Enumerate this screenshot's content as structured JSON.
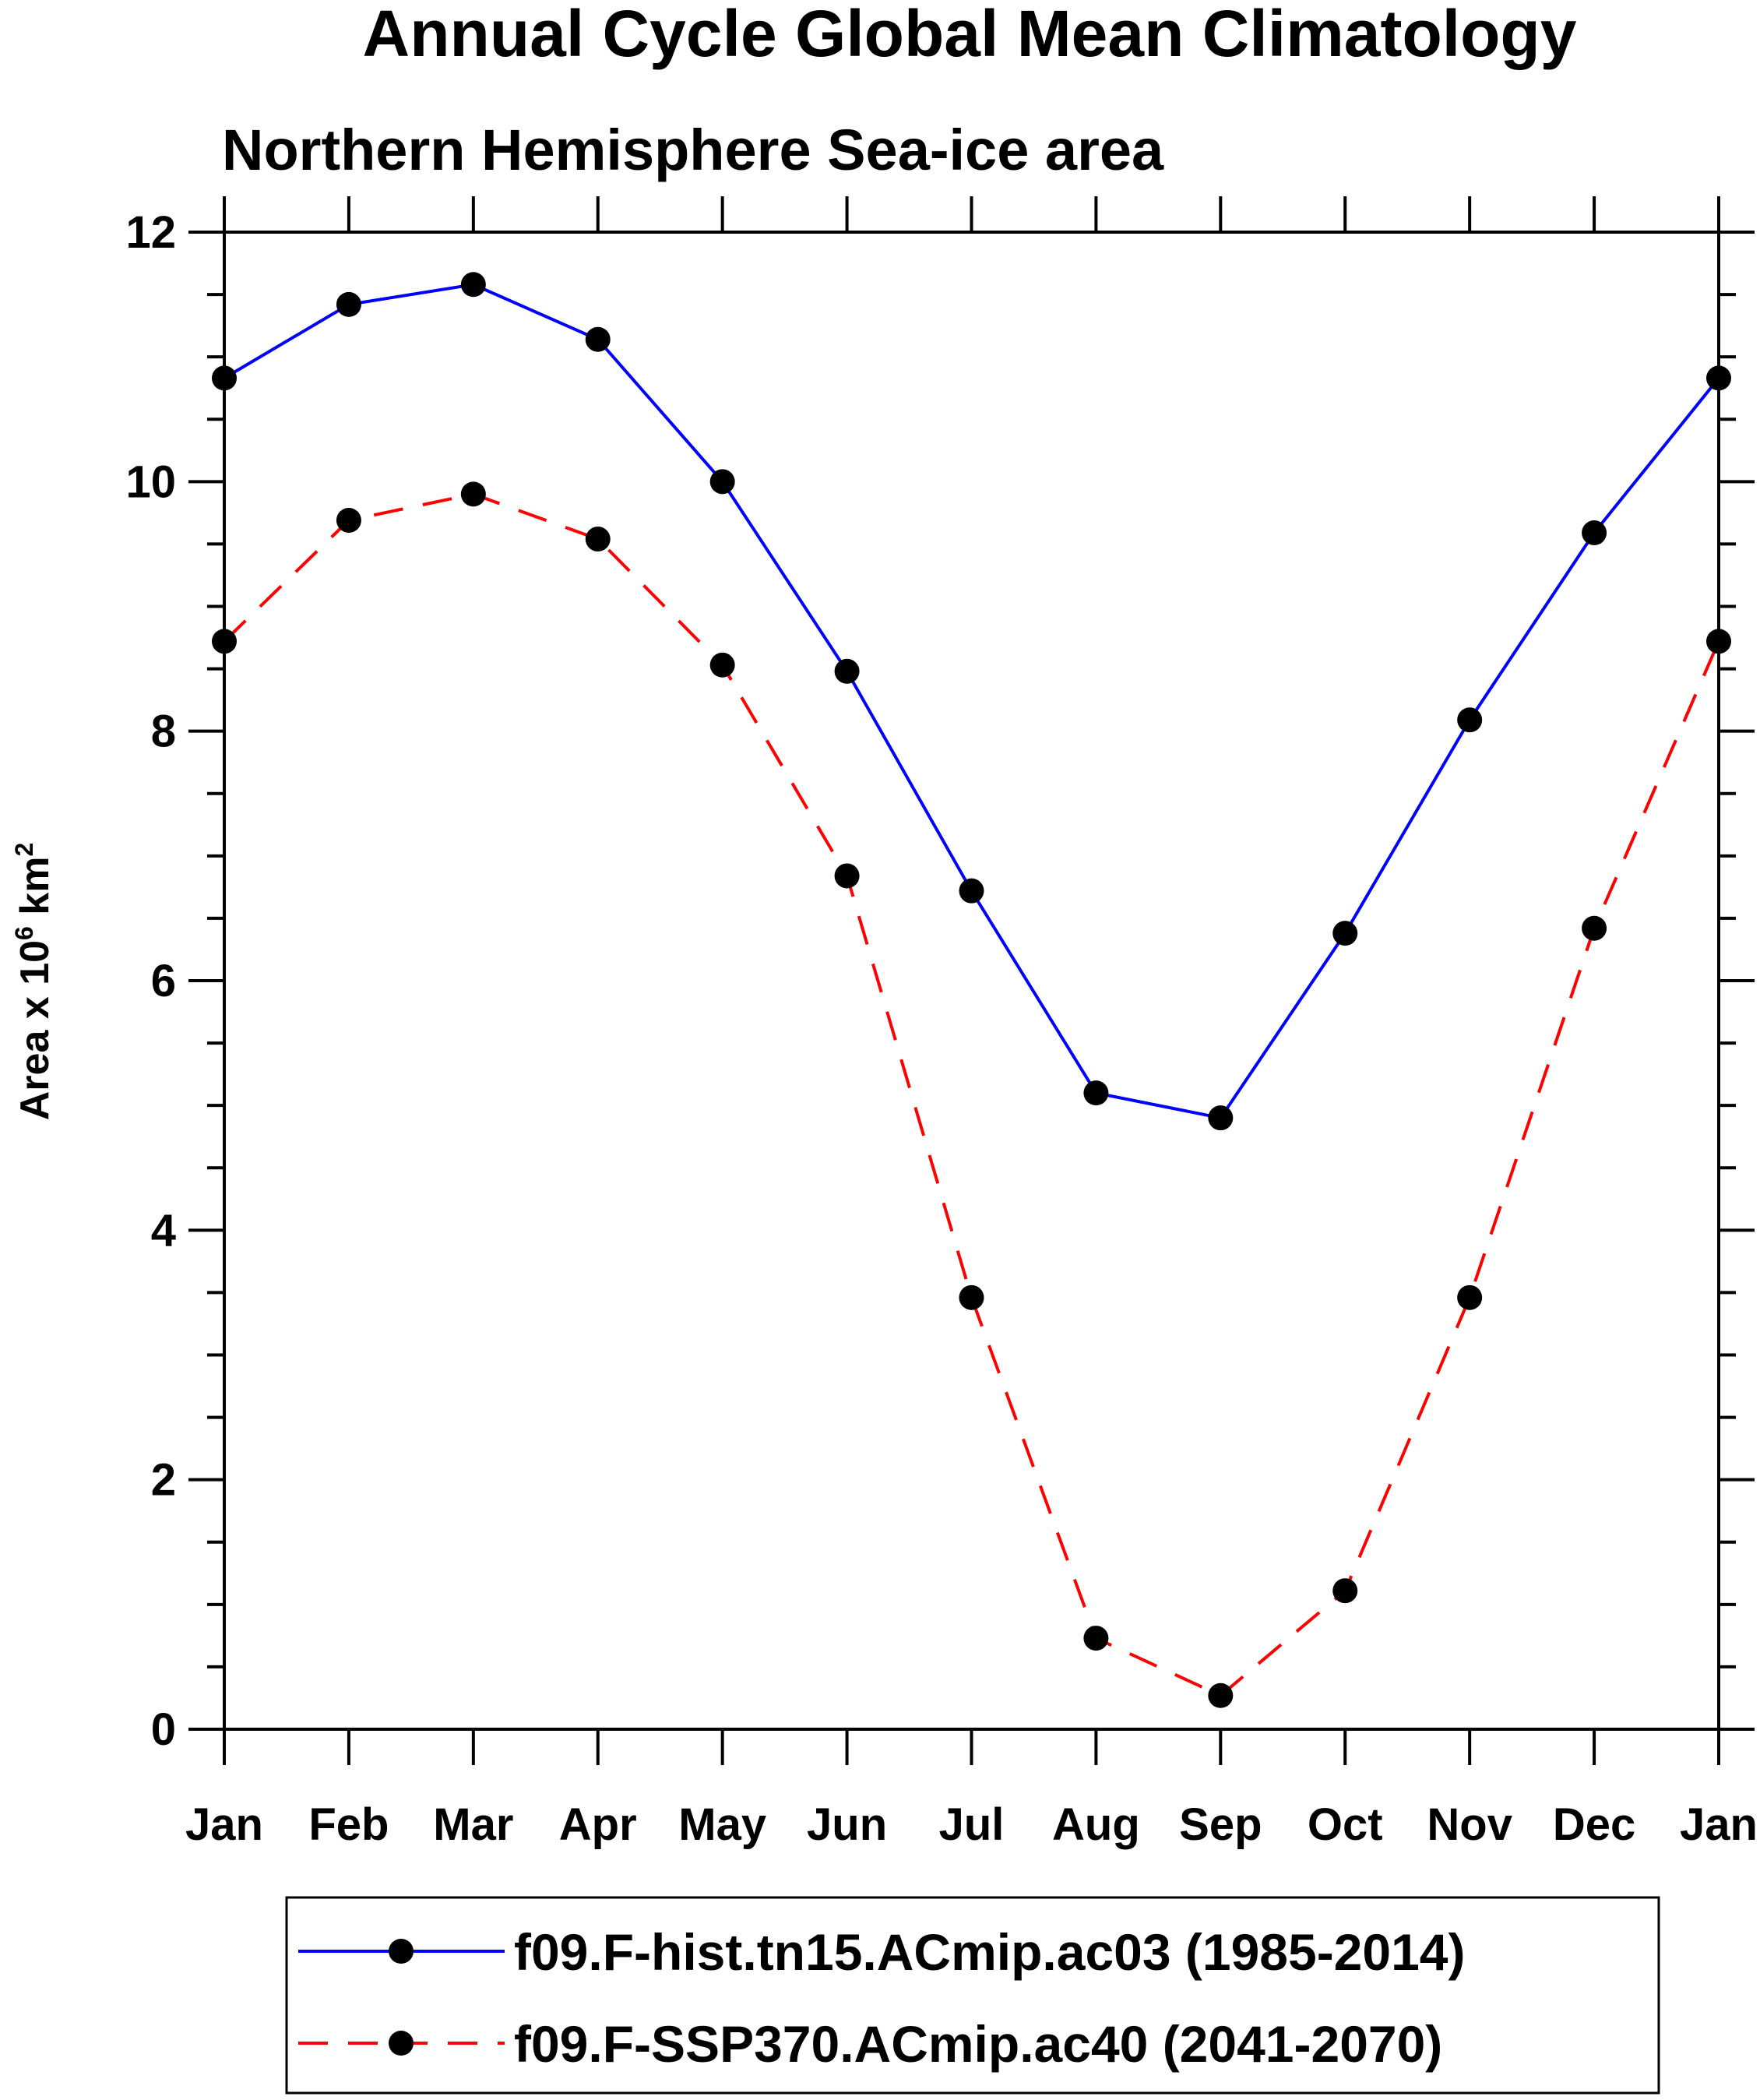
{
  "chart_data": {
    "type": "line",
    "title": "Annual Cycle Global Mean Climatology",
    "subtitle": "Northern Hemisphere Sea-ice area",
    "ylabel": "Area x 10",
    "ylabel_exp": "6",
    "ylabel_unit": " km",
    "ylabel_unit_exp": "2",
    "xlabel": "",
    "ylim": [
      0,
      12
    ],
    "y_ticks": [
      "0",
      "2",
      "4",
      "6",
      "8",
      "10",
      "12"
    ],
    "categories": [
      "Jan",
      "Feb",
      "Mar",
      "Apr",
      "May",
      "Jun",
      "Jul",
      "Aug",
      "Sep",
      "Oct",
      "Nov",
      "Dec",
      "Jan"
    ],
    "legend_position": "bottom",
    "series": [
      {
        "name": "f09.F-hist.tn15.ACmip.ac03 (1985-2014)",
        "color": "#0000ff",
        "dash": "solid",
        "marker": "circle",
        "values": [
          10.83,
          11.42,
          11.58,
          11.14,
          10.0,
          8.48,
          6.72,
          5.1,
          4.9,
          6.38,
          8.09,
          9.59,
          10.83
        ]
      },
      {
        "name": "f09.F-SSP370.ACmip.ac40 (2041-2070)",
        "color": "#ff0000",
        "dash": "dashed",
        "marker": "circle",
        "values": [
          8.72,
          9.69,
          9.9,
          9.54,
          8.53,
          6.84,
          3.46,
          0.73,
          0.27,
          1.11,
          3.46,
          6.42,
          8.72
        ]
      }
    ]
  }
}
